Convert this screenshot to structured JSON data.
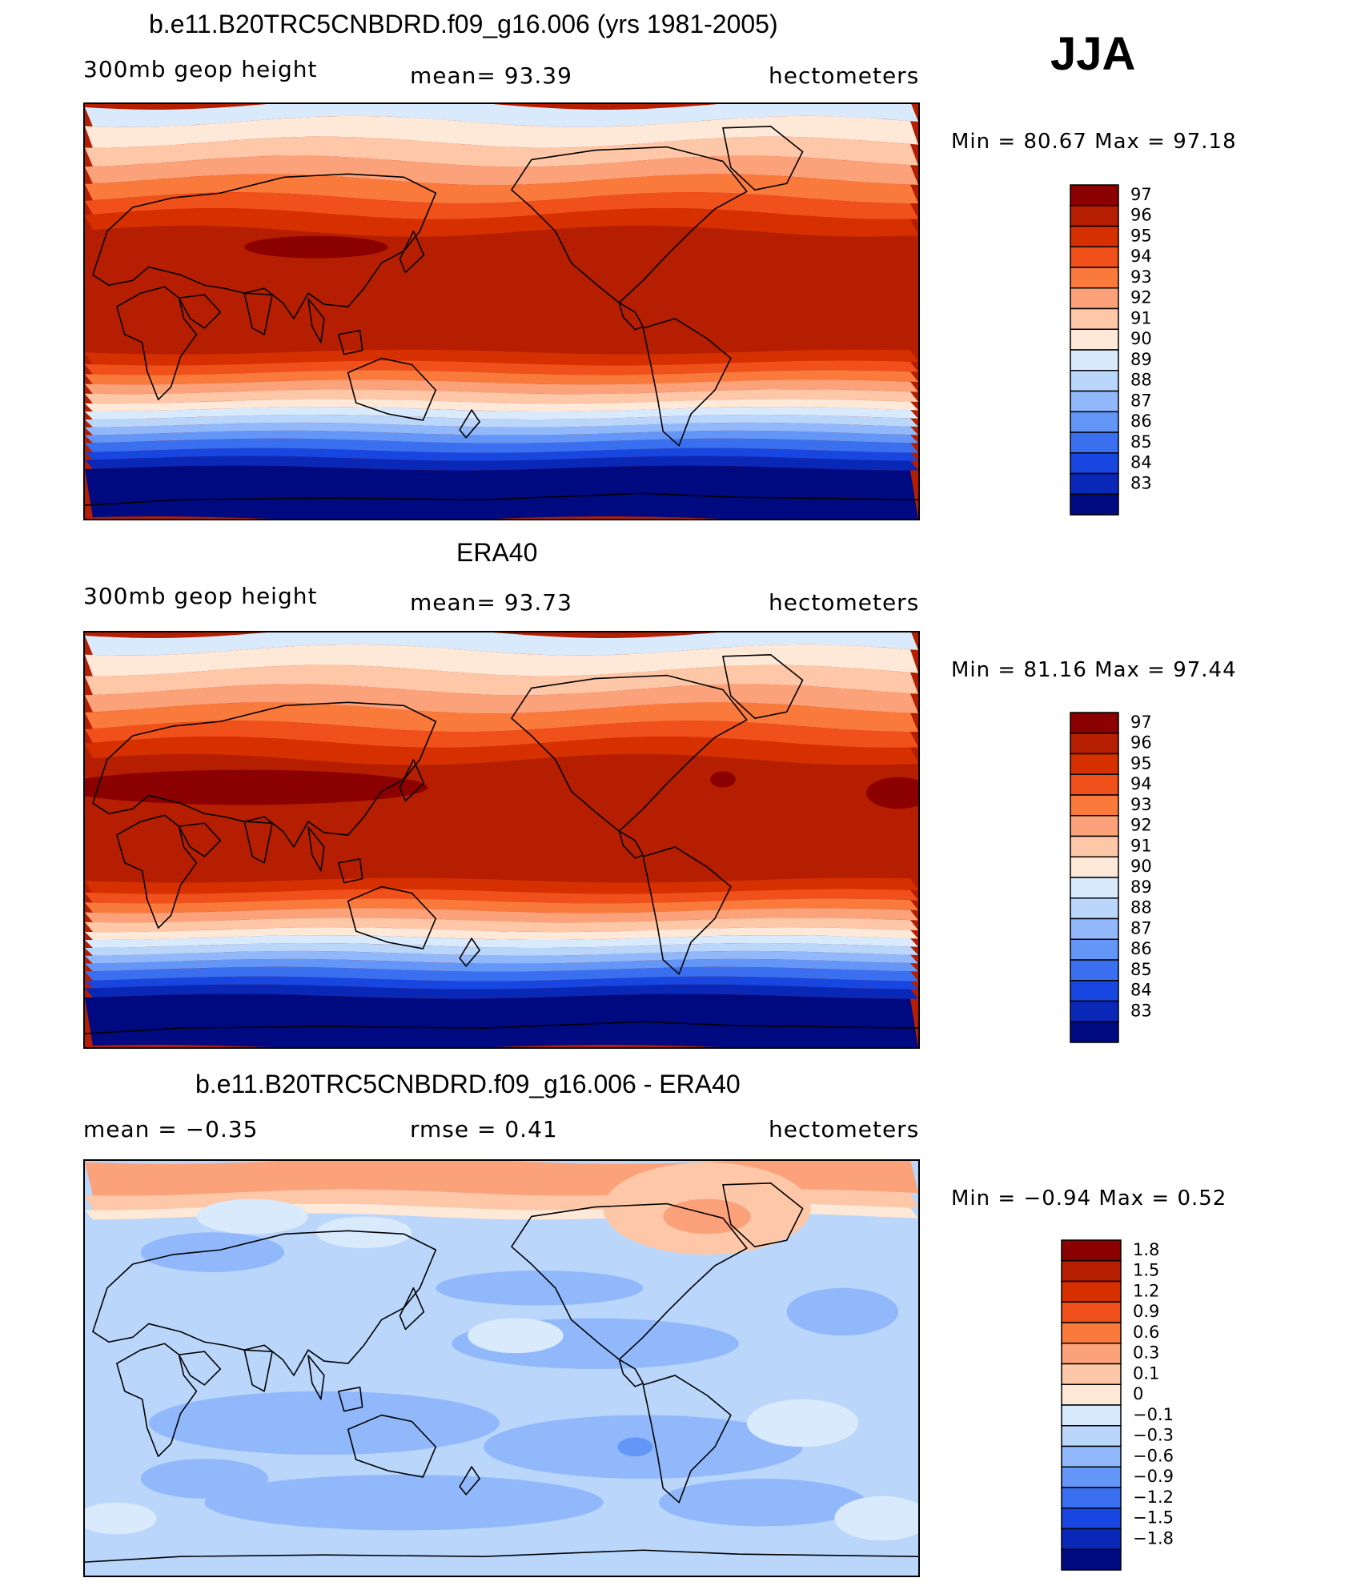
{
  "season": "JJA",
  "chart_data": [
    {
      "type": "heatmap",
      "name": "model",
      "title": "b.e11.B20TRC5CNBDRD.f09_g16.006 (yrs 1981-2005)",
      "variable": "300mb geop height",
      "stat1": "mean=   93.39",
      "stat2": "",
      "units": "hectometers",
      "min_max": "Min =   80.67 Max =   97.18",
      "min": 80.67,
      "max": 97.18,
      "mean": 93.39,
      "colorbar_labels": [
        "97",
        "96",
        "95",
        "94",
        "93",
        "92",
        "91",
        "90",
        "89",
        "88",
        "87",
        "86",
        "85",
        "84",
        "83"
      ],
      "colors": [
        "#8b0000",
        "#b51e00",
        "#d63000",
        "#f0501a",
        "#fa7a3c",
        "#fca27a",
        "#fdc7a8",
        "#fee8d7",
        "#d8eafc",
        "#bad6fb",
        "#91b8fb",
        "#6496f8",
        "#3a70f0",
        "#1746e0",
        "#0a28b8",
        "#000a80"
      ]
    },
    {
      "type": "heatmap",
      "name": "obs",
      "title": "ERA40",
      "variable": "300mb geop height",
      "stat1": "mean=   93.73",
      "stat2": "",
      "units": "hectometers",
      "min_max": "Min =   81.16 Max =   97.44",
      "min": 81.16,
      "max": 97.44,
      "mean": 93.73,
      "colorbar_labels": [
        "97",
        "96",
        "95",
        "94",
        "93",
        "92",
        "91",
        "90",
        "89",
        "88",
        "87",
        "86",
        "85",
        "84",
        "83"
      ],
      "colors": [
        "#8b0000",
        "#b51e00",
        "#d63000",
        "#f0501a",
        "#fa7a3c",
        "#fca27a",
        "#fdc7a8",
        "#fee8d7",
        "#d8eafc",
        "#bad6fb",
        "#91b8fb",
        "#6496f8",
        "#3a70f0",
        "#1746e0",
        "#0a28b8",
        "#000a80"
      ]
    },
    {
      "type": "heatmap",
      "name": "diff",
      "title": "b.e11.B20TRC5CNBDRD.f09_g16.006 - ERA40",
      "variable": "",
      "stat1": "mean =   −0.35",
      "stat2": "rmse =    0.41",
      "units": "hectometers",
      "min_max": "Min =   −0.94 Max =    0.52",
      "min": -0.94,
      "max": 0.52,
      "mean": -0.35,
      "rmse": 0.41,
      "colorbar_labels": [
        "1.8",
        "1.5",
        "1.2",
        "0.9",
        "0.6",
        "0.3",
        "0.1",
        "0",
        "−0.1",
        "−0.3",
        "−0.6",
        "−0.9",
        "−1.2",
        "−1.5",
        "−1.8"
      ],
      "colors": [
        "#8b0000",
        "#b51e00",
        "#d63000",
        "#f0501a",
        "#fa7a3c",
        "#fca27a",
        "#fdc7a8",
        "#fee8d7",
        "#d8eafc",
        "#bad6fb",
        "#91b8fb",
        "#6496f8",
        "#3a70f0",
        "#1746e0",
        "#0a28b8",
        "#000a80"
      ]
    }
  ]
}
